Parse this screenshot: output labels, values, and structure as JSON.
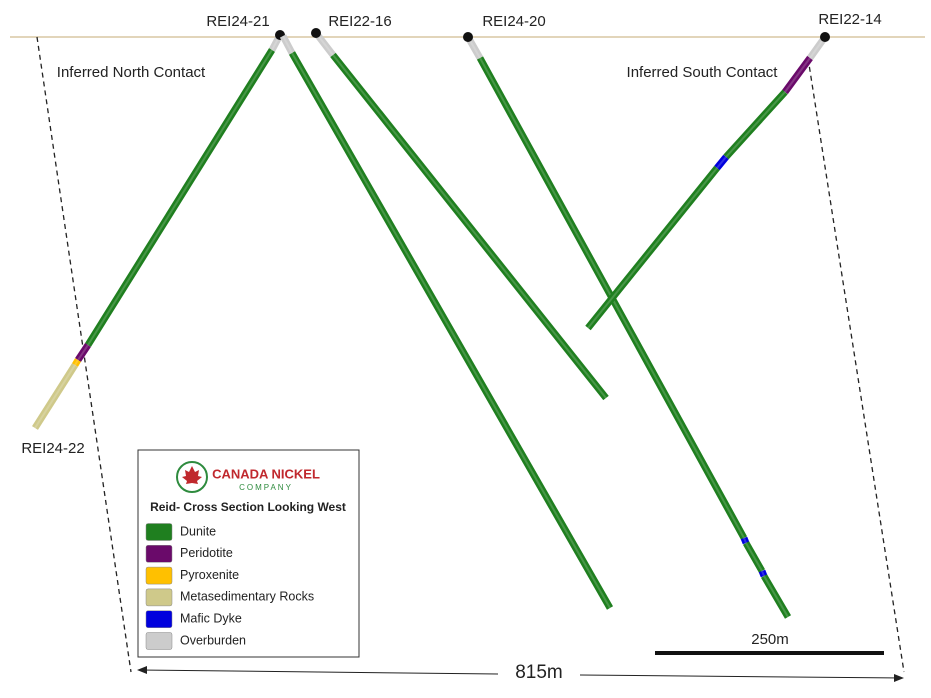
{
  "drill_holes": [
    {
      "label": "REI24-21"
    },
    {
      "label": "REI22-16"
    },
    {
      "label": "REI24-20"
    },
    {
      "label": "REI22-14"
    },
    {
      "label": "REI24-22"
    }
  ],
  "contacts": [
    "Inferred North Contact",
    "Inferred South Contact"
  ],
  "legend": {
    "company": "CANADA NICKEL",
    "company_sub": "COMPANY",
    "title": "Reid- Cross Section Looking West",
    "items": [
      {
        "label": "Dunite",
        "color": "#1f7f1f"
      },
      {
        "label": "Peridotite",
        "color": "#6a0a6a"
      },
      {
        "label": "Pyroxenite",
        "color": "#ffc000"
      },
      {
        "label": "Metasedimentary Rocks",
        "color": "#cfc98a"
      },
      {
        "label": "Mafic Dyke",
        "color": "#0000dd"
      },
      {
        "label": "Overburden",
        "color": "#cccccc"
      }
    ]
  },
  "scale_bar": "250m",
  "section_width": "815m"
}
